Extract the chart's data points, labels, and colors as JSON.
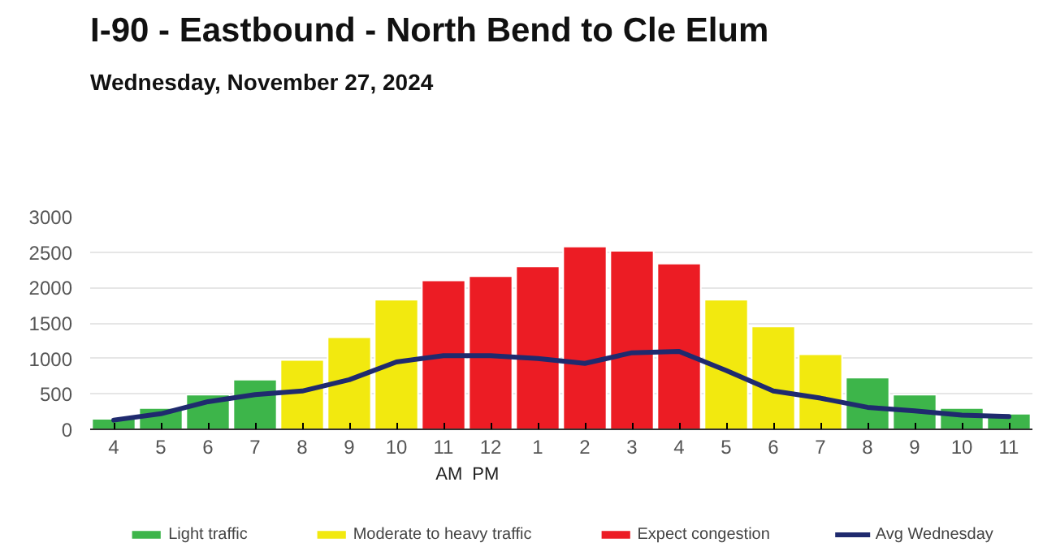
{
  "chart_data": {
    "type": "bar",
    "title": "I-90 - Eastbound - North Bend to Cle Elum",
    "subtitle": "Wednesday, November 27, 2024",
    "categories": [
      "4",
      "5",
      "6",
      "7",
      "8",
      "9",
      "10",
      "11",
      "12",
      "1",
      "2",
      "3",
      "4",
      "5",
      "6",
      "7",
      "8",
      "9",
      "10",
      "11"
    ],
    "series": [
      {
        "name": "Light traffic",
        "color": "#3db54a",
        "values": [
          150,
          300,
          490,
          700,
          null,
          null,
          null,
          null,
          null,
          null,
          null,
          null,
          null,
          null,
          null,
          null,
          730,
          490,
          300,
          220
        ]
      },
      {
        "name": "Moderate to heavy traffic",
        "color": "#f2e90f",
        "values": [
          null,
          null,
          null,
          null,
          980,
          1300,
          1830,
          null,
          null,
          null,
          null,
          null,
          null,
          1830,
          1450,
          1060,
          null,
          null,
          null,
          null
        ]
      },
      {
        "name": "Expect congestion",
        "color": "#ec1c24",
        "values": [
          null,
          null,
          null,
          null,
          null,
          null,
          null,
          2100,
          2160,
          2300,
          2580,
          2520,
          2340,
          null,
          null,
          null,
          null,
          null,
          null,
          null
        ]
      },
      {
        "name": "Avg Wednesday",
        "type": "line",
        "color": "#1f2a6e",
        "values": [
          130,
          220,
          390,
          490,
          540,
          700,
          950,
          1040,
          1040,
          1000,
          930,
          1080,
          1100,
          830,
          540,
          440,
          310,
          260,
          200,
          180
        ]
      }
    ],
    "ylim": [
      0,
      3000
    ],
    "yticks": [
      0,
      500,
      1000,
      1500,
      2000,
      2500,
      3000
    ],
    "grid": "y",
    "legend": "bottom",
    "annotations": [
      "AM",
      "PM"
    ]
  }
}
